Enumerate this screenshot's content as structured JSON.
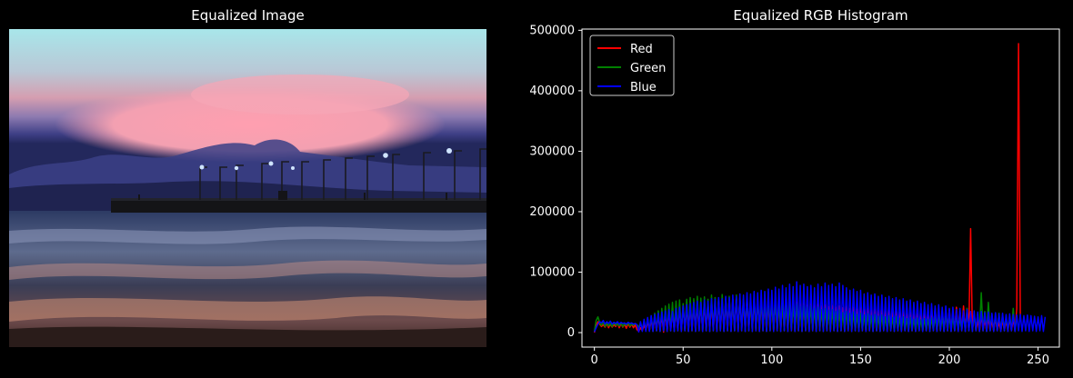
{
  "left_panel": {
    "title": "Equalized Image",
    "image_icon": "sunset-pier-photo"
  },
  "chart_data": {
    "type": "line",
    "title": "Equalized RGB Histogram",
    "xlabel": "",
    "ylabel": "",
    "xlim": [
      -7,
      262
    ],
    "ylim": [
      -24000,
      502000
    ],
    "x_ticks": [
      0,
      50,
      100,
      150,
      200,
      250
    ],
    "y_ticks": [
      0,
      100000,
      200000,
      300000,
      400000,
      500000
    ],
    "grid": false,
    "legend": "top-left",
    "background": "#000000",
    "series": [
      {
        "name": "Red",
        "color": "#ff0000",
        "values": [
          0,
          12000,
          18000,
          14000,
          10000,
          13000,
          9000,
          15000,
          8000,
          14000,
          9000,
          13000,
          10000,
          16000,
          8000,
          15000,
          9000,
          14000,
          7000,
          15000,
          9000,
          14000,
          8000,
          13000,
          5000,
          2000,
          8000,
          3000,
          12000,
          4000,
          18000,
          3000,
          22000,
          2000,
          26000,
          3000,
          30000,
          2000,
          28000,
          1000,
          32000,
          2000,
          35000,
          3000,
          38000,
          2000,
          40000,
          3000,
          42000,
          2000,
          45000,
          3000,
          44000,
          2000,
          46000,
          3000,
          48000,
          2000,
          47000,
          3000,
          50000,
          2000,
          49000,
          3000,
          48000,
          2000,
          52000,
          3000,
          50000,
          2000,
          53000,
          3000,
          55000,
          2000,
          54000,
          3000,
          56000,
          2000,
          55000,
          3000,
          57000,
          2000,
          56000,
          3000,
          55000,
          2000,
          57000,
          3000,
          54000,
          2000,
          56000,
          3000,
          55000,
          2000,
          54000,
          3000,
          53000,
          2000,
          55000,
          3000,
          52000,
          2000,
          54000,
          3000,
          51000,
          2000,
          53000,
          3000,
          50000,
          2000,
          52000,
          3000,
          49000,
          2000,
          51000,
          3000,
          48000,
          2000,
          50000,
          3000,
          46000,
          2000,
          48000,
          3000,
          45000,
          2000,
          47000,
          3000,
          44000,
          2000,
          46000,
          3000,
          43000,
          2000,
          45000,
          3000,
          42000,
          2000,
          44000,
          3000,
          41000,
          2000,
          43000,
          3000,
          40000,
          2000,
          42000,
          3000,
          39000,
          2000,
          41000,
          3000,
          38000,
          2000,
          40000,
          3000,
          37000,
          2000,
          39000,
          3000,
          36000,
          2000,
          38000,
          3000,
          35000,
          2000,
          37000,
          3000,
          34000,
          2000,
          36000,
          3000,
          33000,
          2000,
          35000,
          3000,
          32000,
          2000,
          34000,
          3000,
          31000,
          2000,
          33000,
          3000,
          30000,
          2000,
          32000,
          3000,
          31000,
          2000,
          33000,
          3000,
          40000,
          2000,
          34000,
          3000,
          36000,
          2000,
          32000,
          3000,
          38000,
          2000,
          34000,
          3000,
          42000,
          2000,
          36000,
          3000,
          44000,
          2000,
          40000,
          3000,
          172000,
          2000,
          30000,
          3000,
          20000,
          2000,
          28000,
          3000,
          22000,
          2000,
          25000,
          3000,
          20000,
          2000,
          24000,
          3000,
          18000,
          2000,
          22000,
          3000,
          20000,
          2000,
          24000,
          3000,
          22000,
          2000,
          40000,
          478000,
          25000
        ]
      },
      {
        "name": "Green",
        "color": "#008000",
        "values": [
          2000,
          20000,
          26000,
          16000,
          12000,
          18000,
          10000,
          16000,
          11000,
          15000,
          10000,
          17000,
          12000,
          15000,
          11000,
          16000,
          10000,
          15000,
          12000,
          16000,
          11000,
          14000,
          12000,
          15000,
          13000,
          9000,
          16000,
          6000,
          20000,
          4000,
          24000,
          3000,
          28000,
          2000,
          32000,
          3000,
          36000,
          2000,
          40000,
          3000,
          44000,
          2000,
          47000,
          3000,
          50000,
          2000,
          52000,
          3000,
          54000,
          2000,
          48000,
          3000,
          55000,
          2000,
          58000,
          3000,
          56000,
          2000,
          60000,
          3000,
          57000,
          2000,
          59000,
          3000,
          55000,
          2000,
          62000,
          3000,
          58000,
          2000,
          56000,
          3000,
          63000,
          2000,
          58000,
          3000,
          60000,
          2000,
          55000,
          3000,
          62000,
          2000,
          58000,
          3000,
          56000,
          2000,
          60000,
          3000,
          54000,
          2000,
          58000,
          3000,
          55000,
          2000,
          56000,
          3000,
          52000,
          2000,
          55000,
          3000,
          50000,
          2000,
          53000,
          3000,
          48000,
          2000,
          50000,
          3000,
          47000,
          2000,
          48000,
          3000,
          45000,
          2000,
          47000,
          3000,
          43000,
          2000,
          45000,
          3000,
          42000,
          2000,
          44000,
          3000,
          40000,
          2000,
          42000,
          3000,
          38000,
          2000,
          40000,
          3000,
          37000,
          2000,
          38000,
          3000,
          35000,
          2000,
          37000,
          3000,
          33000,
          2000,
          35000,
          3000,
          32000,
          2000,
          34000,
          3000,
          30000,
          2000,
          32000,
          3000,
          29000,
          2000,
          31000,
          3000,
          28000,
          2000,
          30000,
          3000,
          27000,
          2000,
          29000,
          3000,
          26000,
          2000,
          28000,
          3000,
          25000,
          2000,
          27000,
          3000,
          24000,
          2000,
          26000,
          3000,
          23000,
          2000,
          25000,
          3000,
          22000,
          2000,
          24000,
          3000,
          21000,
          2000,
          23000,
          3000,
          22000,
          2000,
          24000,
          3000,
          26000,
          2000,
          28000,
          3000,
          25000,
          2000,
          30000,
          3000,
          27000,
          2000,
          26000,
          3000,
          28000,
          2000,
          25000,
          3000,
          30000,
          2000,
          40000,
          3000,
          28000,
          2000,
          30000,
          3000,
          33000,
          2000,
          66000,
          3000,
          35000,
          2000,
          50000,
          3000,
          30000,
          2000,
          28000,
          3000,
          32000,
          2000,
          30000,
          3000,
          26000,
          2000,
          28000,
          3000,
          40000,
          2000,
          25000
        ]
      },
      {
        "name": "Blue",
        "color": "#0000ff",
        "values": [
          1000,
          8000,
          14000,
          18000,
          16000,
          20000,
          14000,
          18000,
          15000,
          19000,
          14000,
          17000,
          15000,
          18000,
          14000,
          17000,
          15000,
          16000,
          14000,
          17000,
          15000,
          16000,
          14000,
          15000,
          13000,
          1000,
          18000,
          2000,
          22000,
          2000,
          25000,
          2000,
          28000,
          2000,
          30000,
          3000,
          32000,
          2000,
          34000,
          3000,
          36000,
          2000,
          38000,
          3000,
          35000,
          2000,
          40000,
          3000,
          42000,
          2000,
          44000,
          3000,
          46000,
          2000,
          48000,
          3000,
          50000,
          2000,
          52000,
          3000,
          50000,
          2000,
          54000,
          3000,
          52000,
          2000,
          56000,
          3000,
          55000,
          2000,
          58000,
          3000,
          56000,
          2000,
          60000,
          3000,
          58000,
          2000,
          62000,
          3000,
          60000,
          2000,
          64000,
          3000,
          62000,
          2000,
          66000,
          3000,
          64000,
          2000,
          68000,
          3000,
          66000,
          2000,
          70000,
          3000,
          68000,
          2000,
          72000,
          3000,
          70000,
          2000,
          75000,
          3000,
          72000,
          2000,
          78000,
          3000,
          74000,
          2000,
          80000,
          3000,
          76000,
          2000,
          84000,
          3000,
          78000,
          2000,
          80000,
          3000,
          76000,
          2000,
          78000,
          3000,
          74000,
          2000,
          80000,
          3000,
          76000,
          2000,
          82000,
          3000,
          78000,
          2000,
          80000,
          3000,
          76000,
          2000,
          82000,
          3000,
          78000,
          2000,
          74000,
          3000,
          70000,
          2000,
          72000,
          3000,
          68000,
          2000,
          70000,
          3000,
          64000,
          2000,
          66000,
          3000,
          62000,
          2000,
          64000,
          3000,
          60000,
          2000,
          62000,
          3000,
          58000,
          2000,
          60000,
          3000,
          56000,
          2000,
          58000,
          3000,
          54000,
          2000,
          56000,
          3000,
          52000,
          2000,
          54000,
          3000,
          50000,
          2000,
          52000,
          3000,
          48000,
          2000,
          50000,
          3000,
          46000,
          2000,
          48000,
          3000,
          44000,
          2000,
          46000,
          3000,
          42000,
          2000,
          44000,
          3000,
          40000,
          2000,
          42000,
          3000,
          38000,
          2000,
          40000,
          3000,
          36000,
          2000,
          38000,
          3000,
          35000,
          2000,
          36000,
          3000,
          34000,
          2000,
          35000,
          3000,
          33000,
          2000,
          34000,
          3000,
          32000,
          2000,
          33000,
          3000,
          31000,
          2000,
          32000,
          3000,
          30000,
          2000,
          31000,
          3000,
          30000,
          2000,
          29000,
          3000,
          30000,
          2000,
          28000,
          3000,
          29000,
          2000,
          28000,
          3000,
          27000,
          2000,
          26000,
          3000,
          28000,
          2000,
          26000
        ]
      }
    ]
  }
}
